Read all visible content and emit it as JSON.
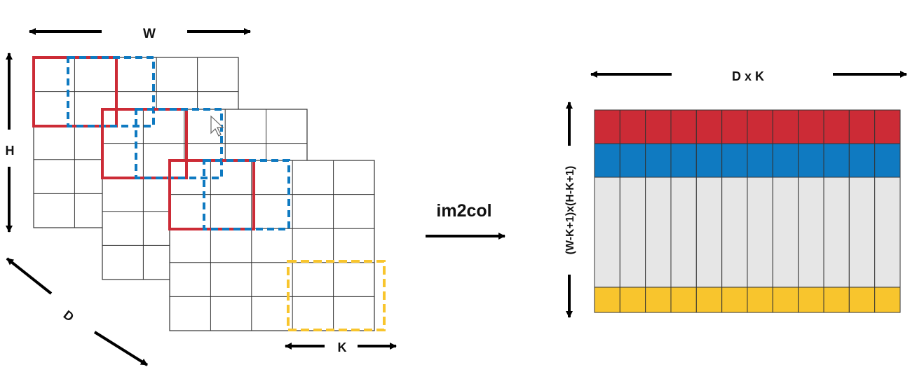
{
  "labels": {
    "width": "W",
    "height": "H",
    "depth": "D",
    "kernel": "K",
    "operation": "im2col",
    "matrix_width": "D x K",
    "matrix_height": "(W-K+1)x(H-K+1)"
  },
  "colors": {
    "red": "#cc2b36",
    "blue": "#0f7ac1",
    "yellow": "#f8c52d",
    "gray": "#e6e6e6",
    "grid": "#333333"
  },
  "input_volume": {
    "depth_slices": 3,
    "rows": 5,
    "cols": 5
  },
  "output_matrix": {
    "columns": 12,
    "rows": [
      {
        "name": "first-patch",
        "color": "red"
      },
      {
        "name": "second-patch",
        "color": "blue"
      },
      {
        "name": "middle-patches",
        "color": "gray"
      },
      {
        "name": "last-patch",
        "color": "yellow"
      }
    ]
  }
}
